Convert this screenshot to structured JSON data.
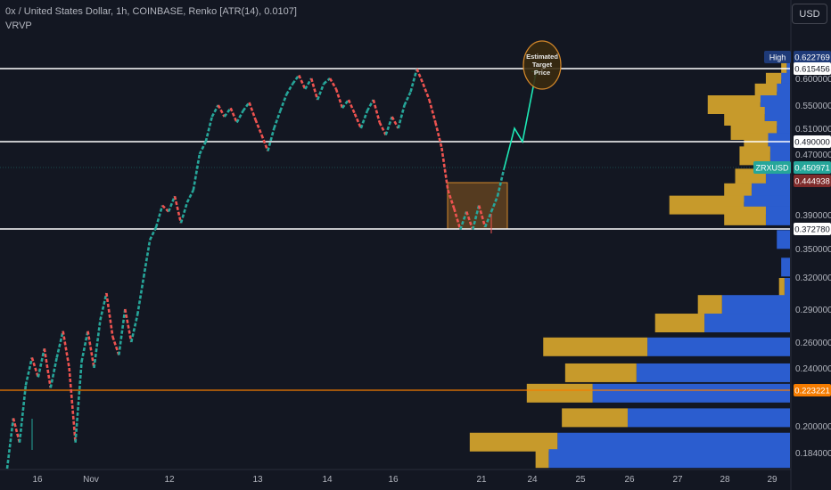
{
  "header": {
    "title": "0x / United States Dollar, 1h, COINBASE, Renko [ATR(14), 0.0107]",
    "indicator": "VRVP",
    "currency": "USD"
  },
  "colors": {
    "background": "#131722",
    "up": "#26a69a",
    "down": "#ef5350",
    "profile_up": "#2b5dcf",
    "profile_down": "#c79a2b",
    "hline": "#ffffff",
    "orange_line": "#f57c00",
    "zone": "#8d5a1f",
    "projection": "#1de9b6"
  },
  "chart_data": {
    "type": "renko",
    "symbol": "ZRXUSD",
    "exchange": "COINBASE",
    "interval": "1h",
    "brick_size": 0.0107,
    "y_axis_ticks": [
      "0.600000",
      "0.550000",
      "0.510000",
      "0.470000",
      "0.390000",
      "0.350000",
      "0.320000",
      "0.290000",
      "0.260000",
      "0.240000",
      "0.200000",
      "0.184000"
    ],
    "x_axis_ticks": [
      "16",
      "Nov",
      "12",
      "13",
      "14",
      "16",
      "21",
      "24",
      "25",
      "26",
      "27",
      "28",
      "29"
    ],
    "price_labels": [
      {
        "value": 0.622769,
        "text": "0.622769",
        "tag": "High",
        "color": "#1e3a78"
      },
      {
        "value": 0.615456,
        "text": "0.615456",
        "color": "#ffffff"
      },
      {
        "value": 0.49,
        "text": "0.490000",
        "color": "#ffffff"
      },
      {
        "value": 0.450971,
        "text": "0.450971",
        "tag": "ZRXUSD",
        "color": "#26a69a"
      },
      {
        "value": 0.444938,
        "text": "0.444938",
        "color": "#7e2b2b"
      },
      {
        "value": 0.37278,
        "text": "0.372780",
        "color": "#ffffff"
      },
      {
        "value": 0.223221,
        "text": "0.223221",
        "color": "#f57c00"
      }
    ],
    "horizontal_lines": [
      0.615456,
      0.49,
      0.37278,
      0.223221
    ],
    "annotation": "Estimated\nTarget\nPrice",
    "bricks_path": [
      0.169,
      0.205,
      0.19,
      0.227,
      0.248,
      0.233,
      0.255,
      0.225,
      0.248,
      0.27,
      0.24,
      0.19,
      0.245,
      0.27,
      0.24,
      0.28,
      0.305,
      0.265,
      0.25,
      0.29,
      0.26,
      0.285,
      0.32,
      0.36,
      0.375,
      0.405,
      0.395,
      0.42,
      0.38,
      0.41,
      0.43,
      0.47,
      0.49,
      0.53,
      0.55,
      0.53,
      0.545,
      0.52,
      0.54,
      0.555,
      0.525,
      0.5,
      0.475,
      0.51,
      0.54,
      0.57,
      0.59,
      0.605,
      0.58,
      0.6,
      0.56,
      0.59,
      0.6,
      0.58,
      0.545,
      0.56,
      0.535,
      0.51,
      0.54,
      0.56,
      0.52,
      0.5,
      0.53,
      0.51,
      0.55,
      0.575,
      0.615,
      0.59,
      0.56,
      0.52,
      0.48,
      0.43,
      0.4,
      0.372,
      0.395,
      0.372,
      0.405,
      0.375,
      0.395,
      0.42,
      0.45
    ],
    "projection_path": [
      0.45,
      0.51,
      0.49,
      0.615
    ],
    "volume_profile": [
      {
        "price": 0.612,
        "up": 3,
        "down": 5
      },
      {
        "price": 0.592,
        "up": 8,
        "down": 14
      },
      {
        "price": 0.572,
        "up": 12,
        "down": 20
      },
      {
        "price": 0.55,
        "up": 27,
        "down": 48
      },
      {
        "price": 0.53,
        "up": 23,
        "down": 37
      },
      {
        "price": 0.506,
        "up": 12,
        "down": 42
      },
      {
        "price": 0.488,
        "up": 20,
        "down": 22
      },
      {
        "price": 0.467,
        "up": 18,
        "down": 28
      },
      {
        "price": 0.446,
        "up": 22,
        "down": 28
      },
      {
        "price": 0.425,
        "up": 35,
        "down": 25
      },
      {
        "price": 0.405,
        "up": 42,
        "down": 68
      },
      {
        "price": 0.388,
        "up": 22,
        "down": 38
      },
      {
        "price": 0.36,
        "up": 12,
        "down": 0
      },
      {
        "price": 0.33,
        "up": 8,
        "down": 0
      },
      {
        "price": 0.31,
        "up": 5,
        "down": 5
      },
      {
        "price": 0.294,
        "up": 62,
        "down": 22
      },
      {
        "price": 0.277,
        "up": 78,
        "down": 45
      },
      {
        "price": 0.256,
        "up": 130,
        "down": 95
      },
      {
        "price": 0.236,
        "up": 140,
        "down": 65
      },
      {
        "price": 0.221,
        "up": 180,
        "down": 60
      },
      {
        "price": 0.205,
        "up": 148,
        "down": 60
      },
      {
        "price": 0.19,
        "up": 212,
        "down": 80
      },
      {
        "price": 0.178,
        "up": 220,
        "down": 12
      }
    ]
  }
}
